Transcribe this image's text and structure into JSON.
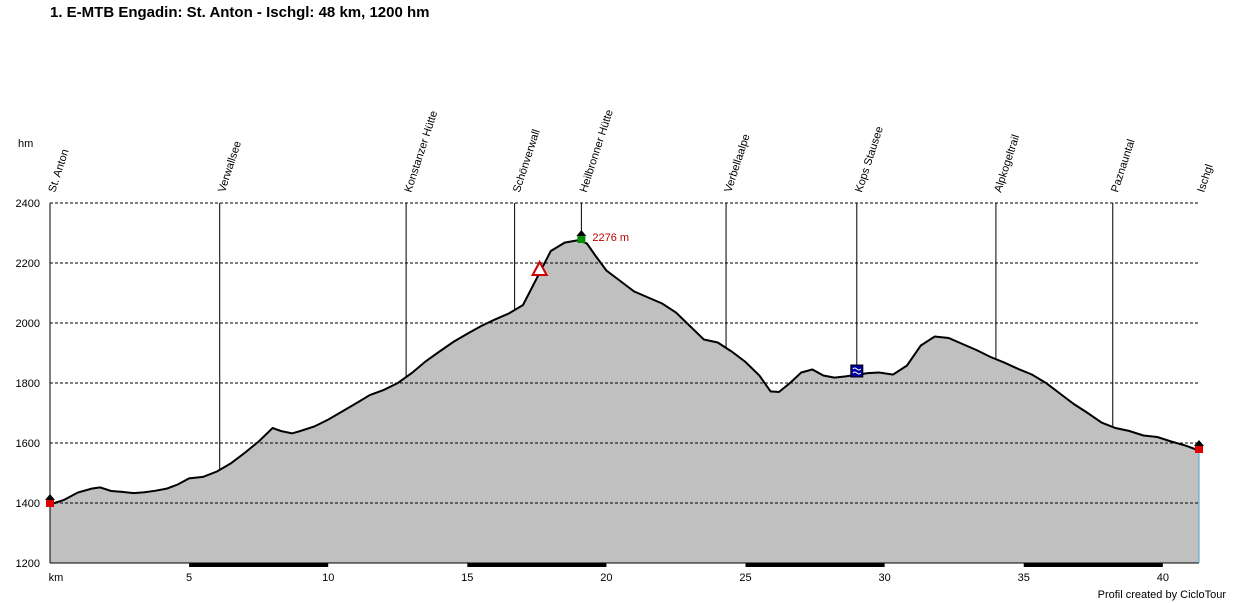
{
  "title": "1. E-MTB Engadin: St. Anton - Ischgl: 48 km, 1200 hm",
  "credit": "Profil created by CicloTour",
  "chart_data": {
    "type": "area",
    "title": "1. E-MTB Engadin: St. Anton - Ischgl: 48 km, 1200 hm",
    "xlabel": "km",
    "ylabel": "hm",
    "xlim": [
      0,
      41.3
    ],
    "ylim": [
      1200,
      2400
    ],
    "x_ticks": [
      5,
      10,
      15,
      20,
      25,
      30,
      35,
      40
    ],
    "y_ticks": [
      1200,
      1400,
      1600,
      1800,
      2000,
      2200,
      2400
    ],
    "grid": "horizontal dashed",
    "fill_color": "#c0c0c0",
    "line_color": "#000000",
    "series": [
      {
        "x": [
          0,
          0.5,
          1.0,
          1.5,
          1.8,
          2.2,
          2.6,
          3.0,
          3.4,
          3.8,
          4.2,
          4.6,
          5.0,
          5.5,
          6.0,
          6.5,
          7.0,
          7.5,
          8.0,
          8.3,
          8.7,
          9.0,
          9.5,
          10.0,
          10.5,
          11.0,
          11.5,
          12.0,
          12.5,
          13.0,
          13.5,
          14.0,
          14.5,
          15.0,
          15.5,
          16.0,
          16.5,
          17.0,
          17.5,
          18.0,
          18.5,
          19.0,
          19.3,
          19.6,
          20.0,
          20.5,
          21.0,
          21.5,
          22.0,
          22.5,
          23.0,
          23.5,
          24.0,
          24.5,
          25.0,
          25.5,
          25.9,
          26.2,
          26.6,
          27.0,
          27.4,
          27.8,
          28.2,
          28.6,
          29.0,
          29.4,
          29.8,
          30.3,
          30.8,
          31.3,
          31.8,
          32.3,
          32.8,
          33.3,
          33.8,
          34.3,
          34.8,
          35.3,
          35.8,
          36.3,
          36.8,
          37.3,
          37.8,
          38.3,
          38.8,
          39.3,
          39.8,
          40.3,
          40.8,
          41.3
        ],
        "y": [
          1395,
          1410,
          1435,
          1448,
          1452,
          1440,
          1437,
          1433,
          1436,
          1441,
          1448,
          1462,
          1482,
          1487,
          1505,
          1532,
          1567,
          1605,
          1650,
          1640,
          1632,
          1640,
          1655,
          1678,
          1705,
          1732,
          1760,
          1777,
          1800,
          1833,
          1872,
          1905,
          1937,
          1964,
          1990,
          2012,
          2032,
          2060,
          2150,
          2240,
          2268,
          2276,
          2265,
          2225,
          2175,
          2140,
          2105,
          2085,
          2065,
          2035,
          1990,
          1945,
          1935,
          1905,
          1870,
          1825,
          1772,
          1770,
          1800,
          1835,
          1845,
          1825,
          1818,
          1822,
          1828,
          1833,
          1835,
          1828,
          1858,
          1925,
          1955,
          1950,
          1930,
          1910,
          1887,
          1868,
          1847,
          1828,
          1800,
          1765,
          1730,
          1700,
          1668,
          1650,
          1640,
          1625,
          1620,
          1605,
          1592,
          1575
        ]
      }
    ],
    "waypoints": [
      {
        "name": "St. Anton",
        "km": 0
      },
      {
        "name": "Verwallsee",
        "km": 6.1
      },
      {
        "name": "Konstanzer Hütte",
        "km": 12.8
      },
      {
        "name": "Schönverwall",
        "km": 16.7
      },
      {
        "name": "Heilbronner Hütte",
        "km": 19.1
      },
      {
        "name": "Verbellaalpe",
        "km": 24.3
      },
      {
        "name": "Kops Stausee",
        "km": 29.0
      },
      {
        "name": "Alpkogeltrail",
        "km": 34.0
      },
      {
        "name": "Paznauntal",
        "km": 38.2
      },
      {
        "name": "Ischgl",
        "km": 41.3
      }
    ],
    "annotations": [
      {
        "text": "2276 m",
        "km": 19.1,
        "hm": 2276,
        "color": "#c00000"
      }
    ],
    "markers": [
      {
        "type": "start",
        "km": 0,
        "hm": 1410
      },
      {
        "type": "summit",
        "km": 19.1,
        "hm": 2290
      },
      {
        "type": "warning",
        "km": 17.6,
        "hm": 2180
      },
      {
        "type": "water",
        "km": 29.0,
        "hm": 1840
      },
      {
        "type": "end",
        "km": 41.3,
        "hm": 1590
      }
    ]
  }
}
